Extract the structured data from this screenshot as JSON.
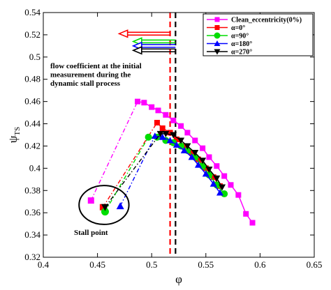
{
  "chart_data": {
    "type": "line",
    "xlabel": "φ",
    "ylabel": "ψ",
    "ylabel_sub": "TS",
    "xlim": [
      0.4,
      0.65
    ],
    "ylim": [
      0.32,
      0.54
    ],
    "x_ticks": [
      0.4,
      0.45,
      0.5,
      0.55,
      0.6,
      0.65
    ],
    "y_ticks": [
      0.32,
      0.34,
      0.36,
      0.38,
      0.4,
      0.42,
      0.44,
      0.46,
      0.48,
      0.5,
      0.52,
      0.54
    ],
    "legend_position": "top-right",
    "series": [
      {
        "name": "Clean_eccentricity(0%)",
        "color": "#ff00ff",
        "marker": "square",
        "solid": [
          [
            0.487,
            0.46
          ],
          [
            0.493,
            0.459
          ],
          [
            0.5,
            0.455
          ],
          [
            0.506,
            0.452
          ],
          [
            0.513,
            0.448
          ],
          [
            0.52,
            0.443
          ],
          [
            0.527,
            0.438
          ],
          [
            0.533,
            0.432
          ],
          [
            0.54,
            0.425
          ],
          [
            0.547,
            0.418
          ],
          [
            0.553,
            0.41
          ],
          [
            0.56,
            0.402
          ],
          [
            0.567,
            0.393
          ],
          [
            0.573,
            0.385
          ],
          [
            0.58,
            0.376
          ],
          [
            0.587,
            0.359
          ],
          [
            0.593,
            0.351
          ]
        ],
        "stall": [
          0.444,
          0.371
        ]
      },
      {
        "name": "α=0°",
        "color": "#ff0000",
        "marker": "square",
        "solid": [
          [
            0.505,
            0.441
          ],
          [
            0.51,
            0.436
          ],
          [
            0.517,
            0.432
          ],
          [
            0.523,
            0.426
          ],
          [
            0.53,
            0.42
          ],
          [
            0.537,
            0.414
          ],
          [
            0.543,
            0.408
          ],
          [
            0.55,
            0.4
          ],
          [
            0.557,
            0.392
          ],
          [
            0.563,
            0.384
          ]
        ],
        "stall": [
          0.455,
          0.365
        ]
      },
      {
        "name": "α=90°",
        "color": "#00dd00",
        "marker": "circle",
        "solid": [
          [
            0.497,
            0.428
          ],
          [
            0.505,
            0.428
          ],
          [
            0.513,
            0.425
          ],
          [
            0.52,
            0.423
          ],
          [
            0.527,
            0.42
          ],
          [
            0.533,
            0.416
          ],
          [
            0.54,
            0.41
          ],
          [
            0.547,
            0.402
          ],
          [
            0.553,
            0.394
          ],
          [
            0.56,
            0.385
          ],
          [
            0.567,
            0.377
          ]
        ],
        "stall": [
          0.457,
          0.361
        ]
      },
      {
        "name": "α=180°",
        "color": "#0000ff",
        "marker": "triangle-up",
        "solid": [
          [
            0.503,
            0.429
          ],
          [
            0.51,
            0.428
          ],
          [
            0.517,
            0.425
          ],
          [
            0.523,
            0.421
          ],
          [
            0.53,
            0.416
          ],
          [
            0.537,
            0.41
          ],
          [
            0.543,
            0.403
          ],
          [
            0.55,
            0.395
          ],
          [
            0.557,
            0.386
          ],
          [
            0.563,
            0.378
          ]
        ],
        "stall": [
          0.471,
          0.366
        ]
      },
      {
        "name": "α=270°",
        "color": "#000000",
        "marker": "triangle-down",
        "solid": [
          [
            0.508,
            0.431
          ],
          [
            0.513,
            0.431
          ],
          [
            0.52,
            0.43
          ],
          [
            0.527,
            0.425
          ],
          [
            0.533,
            0.42
          ],
          [
            0.54,
            0.414
          ],
          [
            0.547,
            0.407
          ],
          [
            0.553,
            0.399
          ],
          [
            0.56,
            0.391
          ],
          [
            0.565,
            0.383
          ]
        ],
        "stall": [
          0.457,
          0.365
        ]
      }
    ],
    "vertical_lines": [
      {
        "x": 0.517,
        "color": "#ff0000"
      },
      {
        "x": 0.522,
        "color": "#000000"
      }
    ],
    "arrows": [
      {
        "from_x": 0.517,
        "to_x": 0.47,
        "y": 0.521,
        "color": "#ff0000"
      },
      {
        "from_x": 0.522,
        "to_x": 0.483,
        "y": 0.514,
        "color": "#00dd00"
      },
      {
        "from_x": 0.522,
        "to_x": 0.483,
        "y": 0.51,
        "color": "#0000ff"
      },
      {
        "from_x": 0.522,
        "to_x": 0.483,
        "y": 0.506,
        "color": "#000000"
      }
    ],
    "annotations": {
      "flow_text": [
        "flow coefficient at the initial",
        "measurement during the",
        "dynamic stall process"
      ],
      "stall_label": "Stall point"
    },
    "stall_ellipse": {
      "cx": 0.456,
      "cy": 0.367,
      "rx": 0.023,
      "ry": 0.0175
    }
  }
}
